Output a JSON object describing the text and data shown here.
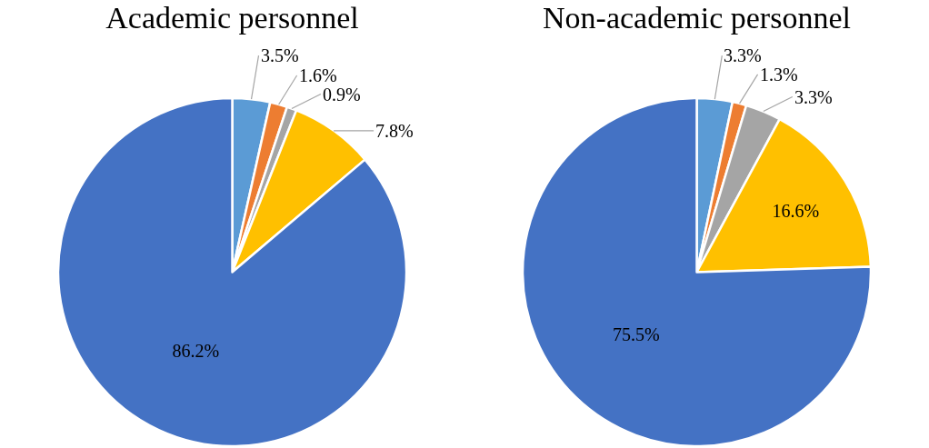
{
  "chart_data": [
    {
      "type": "pie",
      "title": "Academic personnel",
      "categories": [
        null,
        null,
        null,
        null,
        null
      ],
      "values": [
        3.5,
        1.6,
        0.9,
        7.8,
        86.2
      ],
      "value_labels": [
        "3.5%",
        "1.6%",
        "0.9%",
        "7.8%",
        "86.2%"
      ],
      "colors": [
        "#5b9bd5",
        "#ed7d31",
        "#a5a5a5",
        "#ffc000",
        "#4472c4"
      ],
      "legend": false
    },
    {
      "type": "pie",
      "title": "Non-academic personnel",
      "categories": [
        null,
        null,
        null,
        null,
        null
      ],
      "values": [
        3.3,
        1.3,
        3.3,
        16.6,
        75.5
      ],
      "value_labels": [
        "3.3%",
        "1.3%",
        "3.3%",
        "16.6%",
        "75.5%"
      ],
      "colors": [
        "#5b9bd5",
        "#ed7d31",
        "#a5a5a5",
        "#ffc000",
        "#4472c4"
      ],
      "legend": false
    }
  ]
}
